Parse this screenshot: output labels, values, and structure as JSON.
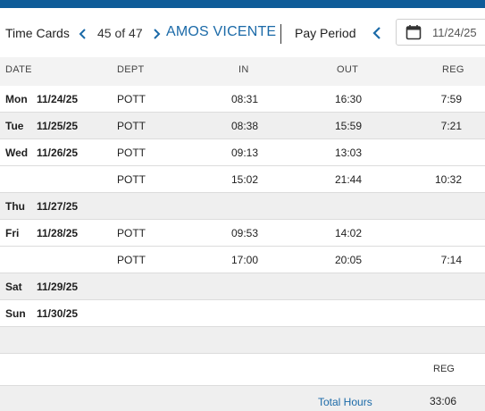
{
  "header": {
    "title": "Time Cards",
    "count": "45 of 47",
    "employee": "AMOS VICENTE",
    "pay_period_label": "Pay Period",
    "date_value": "11/24/25"
  },
  "columns": {
    "date": "DATE",
    "dept": "DEPT",
    "in": "IN",
    "out": "OUT",
    "reg": "REG"
  },
  "rows": [
    {
      "day": "Mon",
      "date": "11/24/25",
      "dept": "POTT",
      "in": "08:31",
      "out": "16:30",
      "reg": "7:59"
    },
    {
      "day": "Tue",
      "date": "11/25/25",
      "dept": "POTT",
      "in": "08:38",
      "out": "15:59",
      "reg": "7:21"
    },
    {
      "day": "Wed",
      "date": "11/26/25",
      "dept": "POTT",
      "in": "09:13",
      "out": "13:03",
      "reg": ""
    },
    {
      "day": "",
      "date": "",
      "dept": "POTT",
      "in": "15:02",
      "out": "21:44",
      "reg": "10:32"
    },
    {
      "day": "Thu",
      "date": "11/27/25",
      "dept": "",
      "in": "",
      "out": "",
      "reg": ""
    },
    {
      "day": "Fri",
      "date": "11/28/25",
      "dept": "POTT",
      "in": "09:53",
      "out": "14:02",
      "reg": ""
    },
    {
      "day": "",
      "date": "",
      "dept": "POTT",
      "in": "17:00",
      "out": "20:05",
      "reg": "7:14"
    },
    {
      "day": "Sat",
      "date": "11/29/25",
      "dept": "",
      "in": "",
      "out": "",
      "reg": ""
    },
    {
      "day": "Sun",
      "date": "11/30/25",
      "dept": "",
      "in": "",
      "out": "",
      "reg": ""
    }
  ],
  "summary": {
    "reg_label": "REG",
    "total_label": "Total Hours",
    "total_value": "33:06"
  },
  "icons": {
    "prev": "chevron-left-icon",
    "next": "chevron-right-icon",
    "calendar": "calendar-icon"
  },
  "colors": {
    "accent": "#1b6aa8",
    "topbar": "#0f5c99",
    "alt_row": "#efefef"
  }
}
